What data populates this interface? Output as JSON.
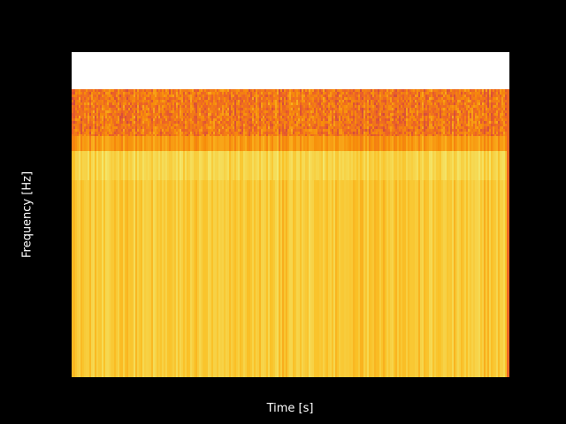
{
  "chart_data": {
    "type": "heatmap",
    "subtype": "spectrogram",
    "title": "",
    "xlabel": "Time [s]",
    "ylabel": "Frequency [Hz]",
    "colormap": "inferno",
    "grid": false,
    "show_ticks": false,
    "empty_band_fraction_top": 0.115,
    "frequency_bands": [
      {
        "band": "highest",
        "fraction": 0.145,
        "mean_level": 0.66
      },
      {
        "band": "upper",
        "fraction": 0.045,
        "mean_level": 0.75
      },
      {
        "band": "upper-mid",
        "fraction": 0.09,
        "mean_level": 0.92
      },
      {
        "band": "lower",
        "fraction": 0.605,
        "mean_level": 0.88
      }
    ],
    "notes_on_values": "levels are normalized 0-1 intensity on the colormap"
  },
  "colors": {
    "background": "#000000",
    "empty_band": "#ffffff",
    "text": "#ffffff"
  }
}
